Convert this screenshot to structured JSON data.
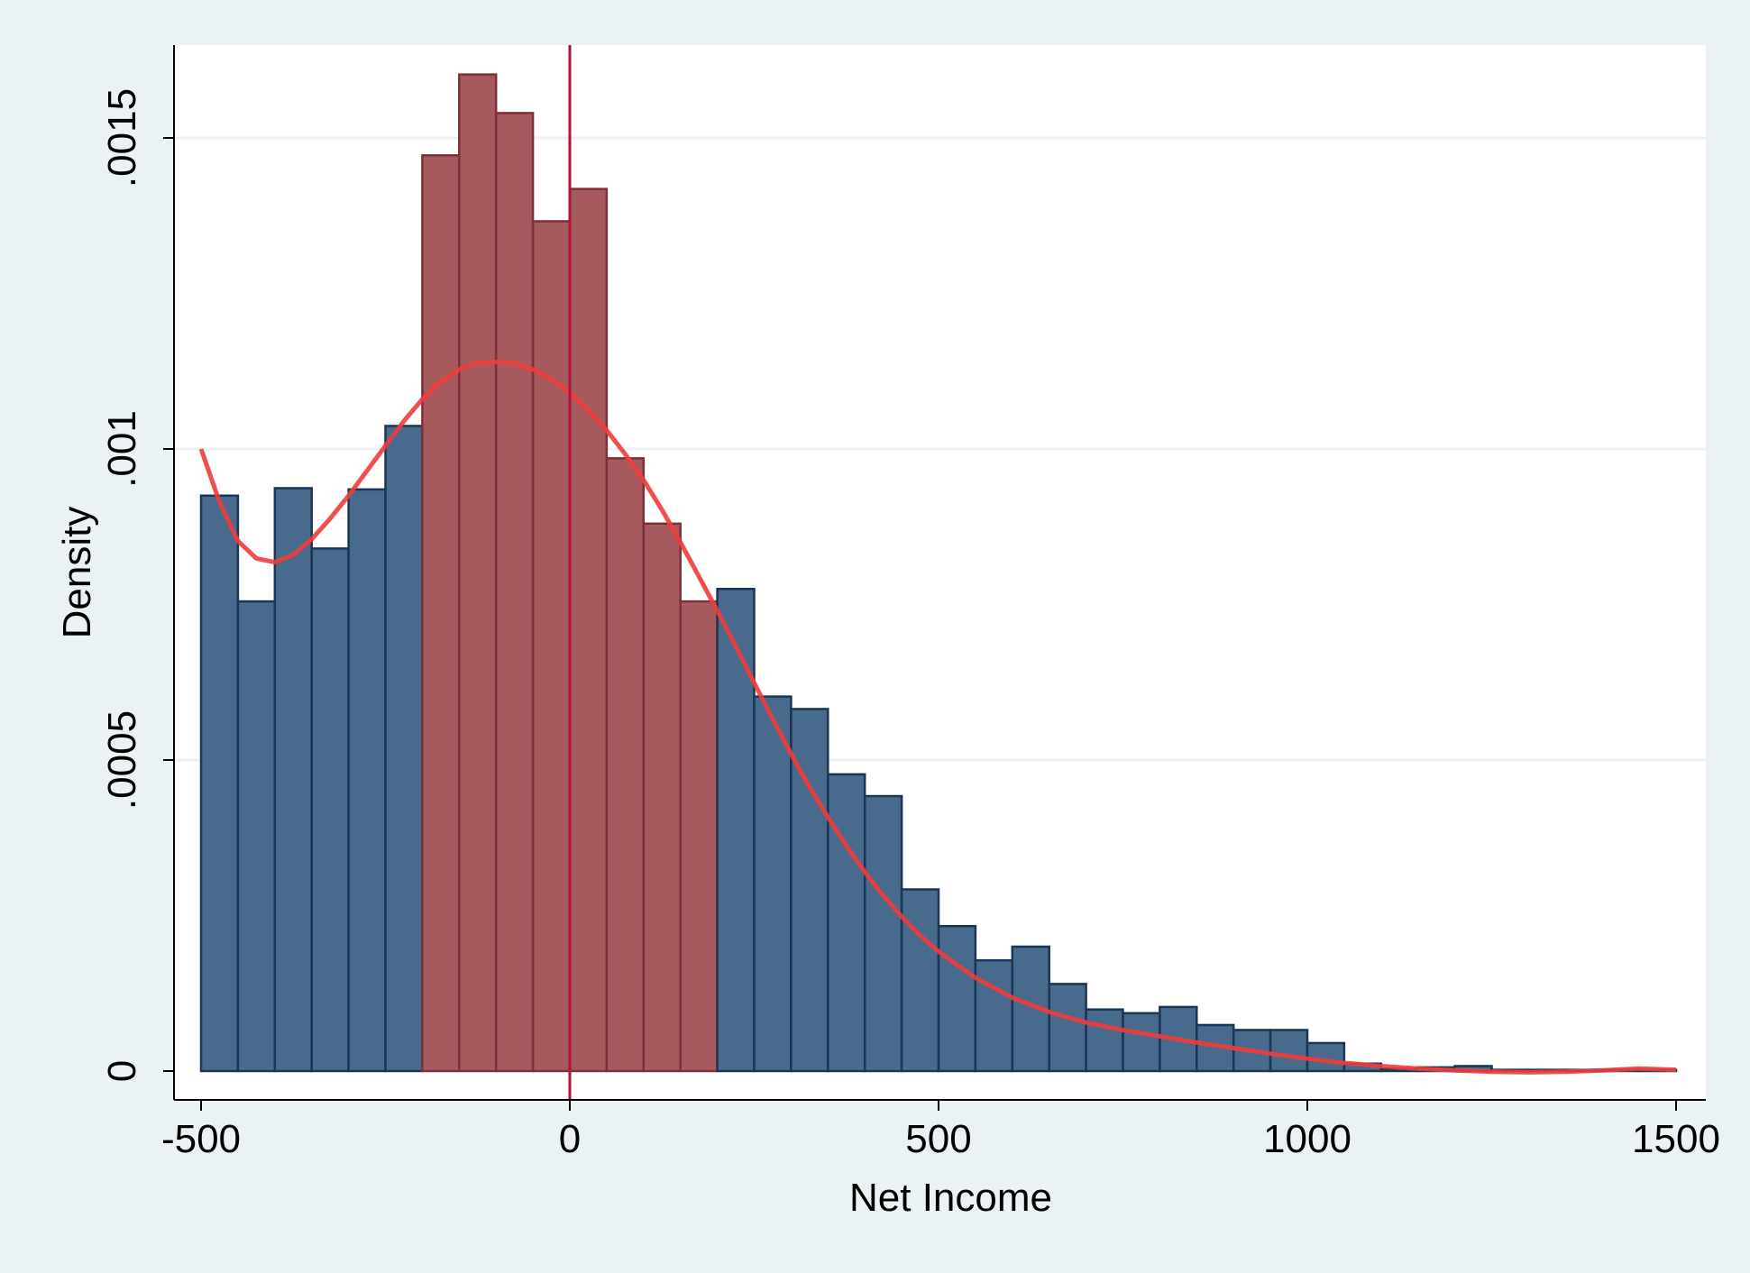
{
  "chart_data": {
    "type": "bar",
    "subtype": "histogram",
    "xlabel": "Net Income",
    "ylabel": "Density",
    "xlim": [
      -500,
      1500
    ],
    "ylim": [
      0,
      0.0016
    ],
    "x_ticks": [
      {
        "value": -500,
        "label": "-500"
      },
      {
        "value": 0,
        "label": "0"
      },
      {
        "value": 500,
        "label": "500"
      },
      {
        "value": 1000,
        "label": "1000"
      },
      {
        "value": 1500,
        "label": "1500"
      }
    ],
    "y_ticks": [
      {
        "value": 0,
        "label": "0"
      },
      {
        "value": 0.0005,
        "label": ".0005"
      },
      {
        "value": 0.001,
        "label": ".001"
      },
      {
        "value": 0.0015,
        "label": ".0015"
      }
    ],
    "grid": "horizontal",
    "bin_width": 50,
    "bins": [
      {
        "start": -500,
        "end": -450,
        "value": 0.000925,
        "group": "outside"
      },
      {
        "start": -450,
        "end": -400,
        "value": 0.000755,
        "group": "outside"
      },
      {
        "start": -400,
        "end": -350,
        "value": 0.000937,
        "group": "outside"
      },
      {
        "start": -350,
        "end": -300,
        "value": 0.00084,
        "group": "outside"
      },
      {
        "start": -300,
        "end": -250,
        "value": 0.000935,
        "group": "outside"
      },
      {
        "start": -250,
        "end": -200,
        "value": 0.001037,
        "group": "outside"
      },
      {
        "start": -200,
        "end": -150,
        "value": 0.001472,
        "group": "inside"
      },
      {
        "start": -150,
        "end": -100,
        "value": 0.001602,
        "group": "inside"
      },
      {
        "start": -100,
        "end": -50,
        "value": 0.00154,
        "group": "inside"
      },
      {
        "start": -50,
        "end": 0,
        "value": 0.001366,
        "group": "inside"
      },
      {
        "start": 0,
        "end": 50,
        "value": 0.001418,
        "group": "inside"
      },
      {
        "start": 50,
        "end": 100,
        "value": 0.000985,
        "group": "inside"
      },
      {
        "start": 100,
        "end": 150,
        "value": 0.00088,
        "group": "inside"
      },
      {
        "start": 150,
        "end": 200,
        "value": 0.000755,
        "group": "inside"
      },
      {
        "start": 200,
        "end": 250,
        "value": 0.000775,
        "group": "outside"
      },
      {
        "start": 250,
        "end": 300,
        "value": 0.000602,
        "group": "outside"
      },
      {
        "start": 300,
        "end": 350,
        "value": 0.000582,
        "group": "outside"
      },
      {
        "start": 350,
        "end": 400,
        "value": 0.000477,
        "group": "outside"
      },
      {
        "start": 400,
        "end": 450,
        "value": 0.000442,
        "group": "outside"
      },
      {
        "start": 450,
        "end": 500,
        "value": 0.000292,
        "group": "outside"
      },
      {
        "start": 500,
        "end": 550,
        "value": 0.000233,
        "group": "outside"
      },
      {
        "start": 550,
        "end": 600,
        "value": 0.000178,
        "group": "outside"
      },
      {
        "start": 600,
        "end": 650,
        "value": 0.0002,
        "group": "outside"
      },
      {
        "start": 650,
        "end": 700,
        "value": 0.00014,
        "group": "outside"
      },
      {
        "start": 700,
        "end": 750,
        "value": 9.9e-05,
        "group": "outside"
      },
      {
        "start": 750,
        "end": 800,
        "value": 9.3e-05,
        "group": "outside"
      },
      {
        "start": 800,
        "end": 850,
        "value": 0.000103,
        "group": "outside"
      },
      {
        "start": 850,
        "end": 900,
        "value": 7.4e-05,
        "group": "outside"
      },
      {
        "start": 900,
        "end": 950,
        "value": 6.6e-05,
        "group": "outside"
      },
      {
        "start": 950,
        "end": 1000,
        "value": 6.6e-05,
        "group": "outside"
      },
      {
        "start": 1000,
        "end": 1050,
        "value": 4.5e-05,
        "group": "outside"
      },
      {
        "start": 1050,
        "end": 1100,
        "value": 1.2e-05,
        "group": "outside"
      },
      {
        "start": 1100,
        "end": 1150,
        "value": 4e-06,
        "group": "outside"
      },
      {
        "start": 1150,
        "end": 1200,
        "value": 6e-06,
        "group": "outside"
      },
      {
        "start": 1200,
        "end": 1250,
        "value": 8e-06,
        "group": "outside"
      },
      {
        "start": 1250,
        "end": 1300,
        "value": 2e-06,
        "group": "outside"
      },
      {
        "start": 1300,
        "end": 1350,
        "value": 2e-06,
        "group": "outside"
      },
      {
        "start": 1350,
        "end": 1400,
        "value": 2e-06,
        "group": "outside"
      },
      {
        "start": 1400,
        "end": 1450,
        "value": 2e-06,
        "group": "outside"
      },
      {
        "start": 1450,
        "end": 1500,
        "value": 2e-06,
        "group": "outside"
      }
    ],
    "density_curve": {
      "x": [
        -500,
        -475,
        -450,
        -425,
        -400,
        -375,
        -350,
        -325,
        -300,
        -275,
        -250,
        -225,
        -200,
        -175,
        -150,
        -125,
        -100,
        -75,
        -50,
        -25,
        0,
        25,
        50,
        75,
        100,
        125,
        150,
        175,
        200,
        225,
        250,
        275,
        300,
        325,
        350,
        375,
        400,
        425,
        450,
        475,
        500,
        550,
        600,
        650,
        700,
        750,
        800,
        850,
        900,
        950,
        1000,
        1050,
        1100,
        1150,
        1200,
        1250,
        1300,
        1350,
        1400,
        1450,
        1500
      ],
      "y": [
        0.001,
        0.000915,
        0.000852,
        0.000824,
        0.000818,
        0.00083,
        0.000855,
        0.000888,
        0.000925,
        0.000965,
        0.001005,
        0.001045,
        0.00108,
        0.001108,
        0.001128,
        0.001138,
        0.00114,
        0.001138,
        0.001128,
        0.001112,
        0.00109,
        0.001062,
        0.00103,
        0.000992,
        0.00095,
        0.000902,
        0.00085,
        0.000795,
        0.00074,
        0.000683,
        0.000624,
        0.000566,
        0.00051,
        0.000457,
        0.000408,
        0.000362,
        0.00032,
        0.000282,
        0.000248,
        0.000218,
        0.000192,
        0.00015,
        0.000118,
        9.5e-05,
        7.8e-05,
        6.6e-05,
        5.6e-05,
        4.6e-05,
        3.7e-05,
        2.8e-05,
        2e-05,
        1.3e-05,
        8e-06,
        4e-06,
        1e-06,
        -1e-06,
        -2e-06,
        -1e-06,
        1e-06,
        4e-06,
        2e-06
      ],
      "color": "#f03c3c"
    },
    "reference_line": {
      "x": 0,
      "color": "#b0123a"
    },
    "colors": {
      "outside_fill": "#486a8c",
      "outside_stroke": "#1b3556",
      "inside_fill": "#a65a5d",
      "inside_stroke": "#7d2f3a",
      "plot_background": "#ffffff",
      "page_background": "#eaf2f3",
      "grid": "#eaf2f3"
    }
  }
}
